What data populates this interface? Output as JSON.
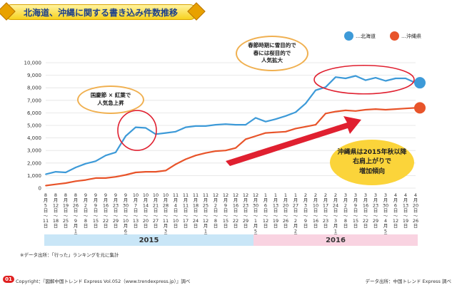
{
  "title": "北海道、沖縄に関する書き込み件数推移",
  "legend": {
    "hokkaido": "…北海道",
    "okinawa": "…沖縄県"
  },
  "annotations": {
    "a1": [
      "国慶節 × 紅葉で",
      "人気急上昇"
    ],
    "a2": [
      "春節時期に雪目的で",
      "春には桜目的で",
      "人気拡大"
    ],
    "a3": [
      "沖縄県は2015年秋以降",
      "右肩上がりで",
      "増加傾向"
    ]
  },
  "years": [
    "2015",
    "2016"
  ],
  "note": "※データ出所：「行った」ランキングを元に集計",
  "page_number": "01",
  "footer_left": "Copyright：『図解中国トレンド Express Vol.052（www.trendexpress.jp）』調べ",
  "footer_right": "データ出所：中国トレンド Express 調べ",
  "colors": {
    "hokkaido": "#3d9ad8",
    "okinawa": "#e8542a",
    "band2015": "#c9e6f7",
    "band2016": "#f9d3e1",
    "highlight": "#e02030"
  },
  "chart_data": {
    "type": "line",
    "title": "北海道、沖縄に関する書き込み件数推移",
    "ylim": [
      0,
      10000
    ],
    "yticks": [
      "0",
      "1,000",
      "2,000",
      "3,000",
      "4,000",
      "5,000",
      "6,000",
      "7,000",
      "8,000",
      "9,000",
      "10,000"
    ],
    "x": [
      [
        "8",
        "月",
        "5",
        "日",
        "〜",
        "11",
        "日"
      ],
      [
        "8",
        "月",
        "12",
        "日",
        "〜",
        "18",
        "日"
      ],
      [
        "8",
        "月",
        "19",
        "日",
        "〜",
        "25",
        "日"
      ],
      [
        "8",
        "月",
        "26",
        "日",
        "〜",
        "9",
        "月",
        "1",
        "日"
      ],
      [
        "9",
        "月",
        "2",
        "日",
        "〜",
        "8",
        "日"
      ],
      [
        "9",
        "月",
        "9",
        "日",
        "〜",
        "15",
        "日"
      ],
      [
        "9",
        "月",
        "16",
        "日",
        "〜",
        "22",
        "日"
      ],
      [
        "9",
        "月",
        "23",
        "日",
        "〜",
        "29",
        "日"
      ],
      [
        "9",
        "月",
        "30",
        "日",
        "〜",
        "10",
        "月",
        "6",
        "日"
      ],
      [
        "10",
        "月",
        "7",
        "日",
        "〜",
        "13",
        "日"
      ],
      [
        "10",
        "月",
        "14",
        "日",
        "〜",
        "20",
        "日"
      ],
      [
        "10",
        "月",
        "21",
        "日",
        "〜",
        "27",
        "日"
      ],
      [
        "10",
        "月",
        "28",
        "日",
        "〜",
        "11",
        "月",
        "3",
        "日"
      ],
      [
        "11",
        "月",
        "4",
        "日",
        "〜",
        "10",
        "日"
      ],
      [
        "11",
        "月",
        "11",
        "日",
        "〜",
        "17",
        "日"
      ],
      [
        "11",
        "月",
        "18",
        "日",
        "〜",
        "24",
        "日"
      ],
      [
        "11",
        "月",
        "25",
        "日",
        "〜",
        "12",
        "月",
        "1",
        "日"
      ],
      [
        "12",
        "月",
        "2",
        "日",
        "〜",
        "8",
        "日"
      ],
      [
        "12",
        "月",
        "9",
        "日",
        "〜",
        "15",
        "日"
      ],
      [
        "12",
        "月",
        "16",
        "日",
        "〜",
        "22",
        "日"
      ],
      [
        "12",
        "月",
        "23",
        "日",
        "〜",
        "29",
        "日"
      ],
      [
        "12",
        "月",
        "30",
        "日",
        "〜",
        "1",
        "月",
        "5",
        "日"
      ],
      [
        "1",
        "月",
        "6",
        "日",
        "〜",
        "12",
        "日"
      ],
      [
        "1",
        "月",
        "13",
        "日",
        "〜",
        "19",
        "日"
      ],
      [
        "1",
        "月",
        "20",
        "日",
        "〜",
        "26",
        "日"
      ],
      [
        "1",
        "月",
        "27",
        "日",
        "〜",
        "2",
        "月",
        "2",
        "日"
      ],
      [
        "2",
        "月",
        "3",
        "日",
        "〜",
        "9",
        "日"
      ],
      [
        "2",
        "月",
        "10",
        "日",
        "〜",
        "16",
        "日"
      ],
      [
        "2",
        "月",
        "17",
        "日",
        "〜",
        "23",
        "日"
      ],
      [
        "2",
        "月",
        "24",
        "日",
        "〜",
        "3",
        "月",
        "1",
        "日"
      ],
      [
        "3",
        "月",
        "2",
        "日",
        "〜",
        "8",
        "日"
      ],
      [
        "3",
        "月",
        "9",
        "日",
        "〜",
        "15",
        "日"
      ],
      [
        "3",
        "月",
        "16",
        "日",
        "〜",
        "22",
        "日"
      ],
      [
        "3",
        "月",
        "23",
        "日",
        "〜",
        "29",
        "日"
      ],
      [
        "3",
        "月",
        "30",
        "日",
        "〜",
        "4",
        "月",
        "5",
        "日"
      ],
      [
        "4",
        "月",
        "6",
        "日",
        "〜",
        "12",
        "日"
      ],
      [
        "4",
        "月",
        "13",
        "日",
        "〜",
        "19",
        "日"
      ],
      [
        "4",
        "月",
        "20",
        "日",
        "〜",
        "26",
        "日"
      ]
    ],
    "series": [
      {
        "name": "北海道",
        "values": [
          1100,
          1300,
          1250,
          1650,
          1950,
          2150,
          2600,
          2850,
          4150,
          4850,
          4800,
          4300,
          4400,
          4500,
          4850,
          4950,
          4950,
          5050,
          5100,
          5050,
          5050,
          5600,
          5300,
          5500,
          5750,
          6050,
          6750,
          7800,
          8050,
          8850,
          8750,
          8950,
          8600,
          8800,
          8550,
          8750,
          8750,
          8400
        ]
      },
      {
        "name": "沖縄県",
        "values": [
          200,
          300,
          400,
          550,
          650,
          800,
          800,
          900,
          1050,
          1250,
          1300,
          1300,
          1400,
          1900,
          2300,
          2600,
          2800,
          2950,
          3000,
          3200,
          3900,
          4150,
          4400,
          4450,
          4500,
          4750,
          4900,
          5050,
          5950,
          6100,
          6200,
          6150,
          6250,
          6300,
          6250,
          6300,
          6350,
          6400
        ]
      }
    ],
    "grid": true
  }
}
